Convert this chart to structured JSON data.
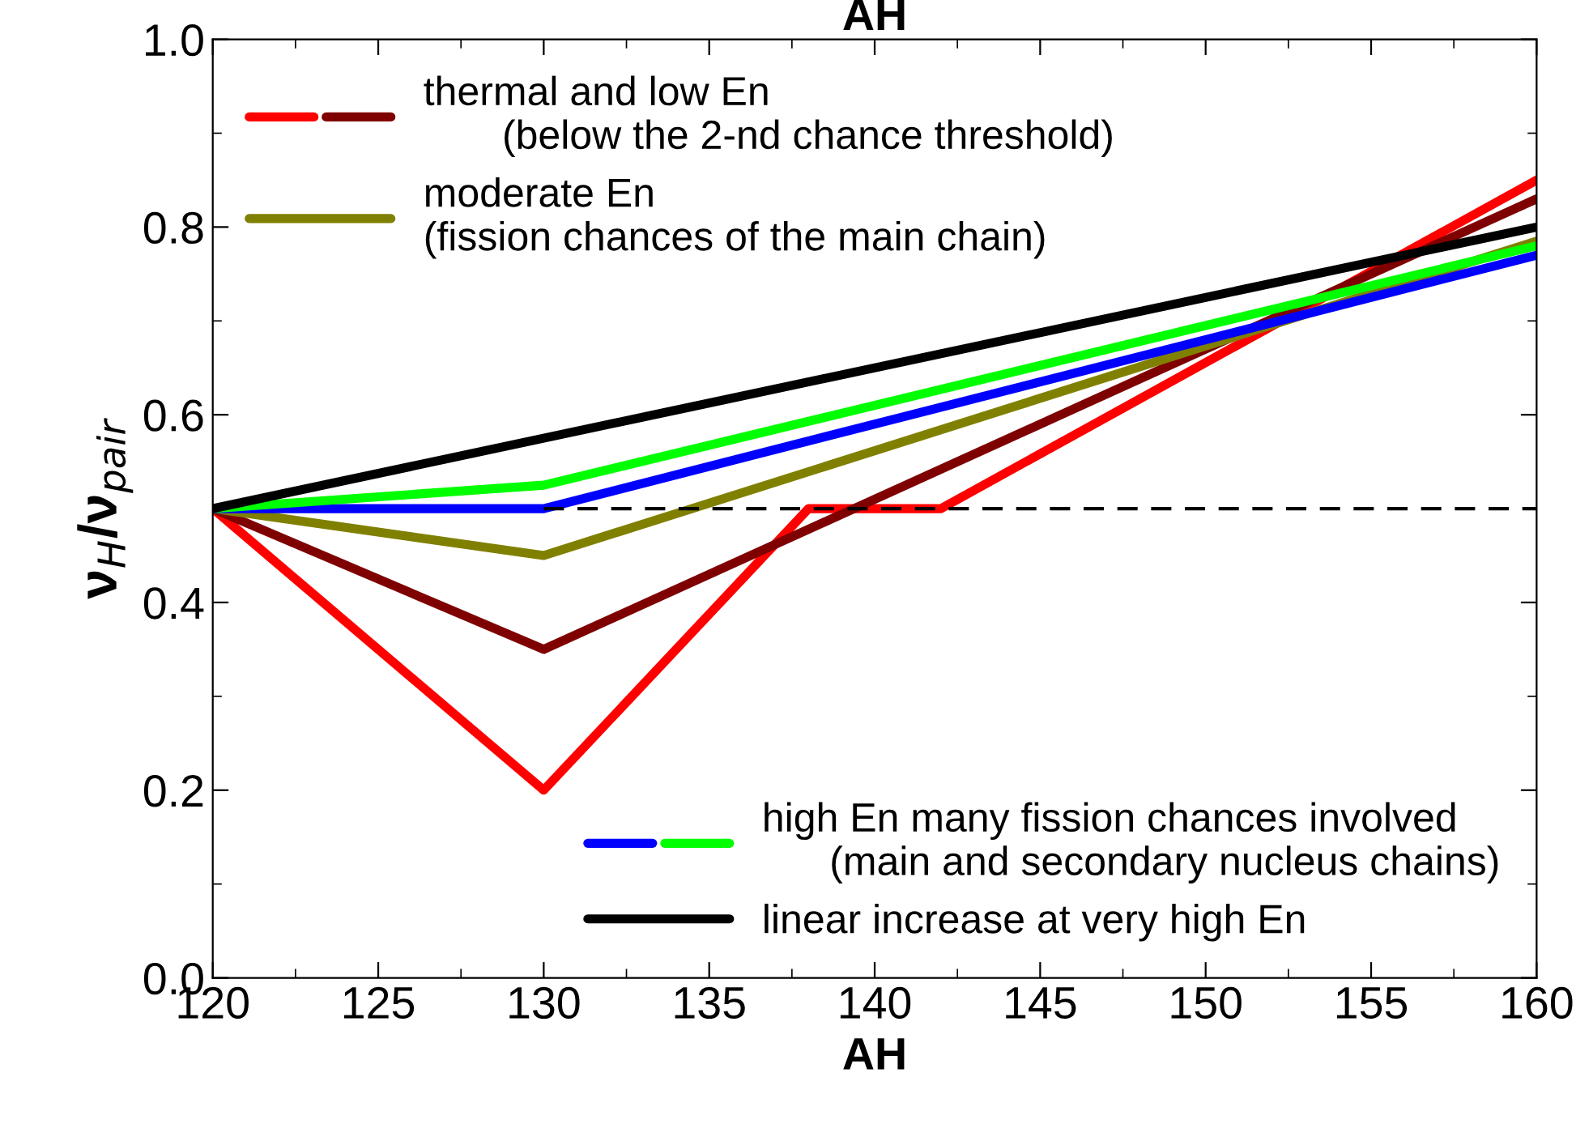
{
  "chart_data": {
    "type": "line",
    "title": "AH",
    "xlabel": "AH",
    "ylabel": "ν$_{H}$/ν$_{pair}$",
    "xlim": [
      120,
      160
    ],
    "xticks": [
      120,
      125,
      130,
      135,
      140,
      145,
      150,
      155,
      160
    ],
    "ylim": [
      0,
      1
    ],
    "yticks": [
      {
        "value": 0,
        "label": "0.0"
      },
      {
        "value": 0.2,
        "label": "0.2"
      },
      {
        "value": 0.4,
        "label": "0.4"
      },
      {
        "value": 0.6,
        "label": "0.6"
      },
      {
        "value": 0.8,
        "label": "0.8"
      },
      {
        "value": 1,
        "label": "1.0"
      }
    ],
    "legend": "top left",
    "grid": false,
    "marker": "none",
    "series": [
      {
        "color": "#ff0000",
        "x": [
          120,
          130,
          138,
          142,
          160
        ],
        "values": [
          0.5,
          0.2,
          0.5,
          0.5,
          0.85
        ]
      },
      {
        "name": "thermal and low En\n       (below the 2-nd chance threshold)",
        "color": "#7f0000",
        "x": [
          120,
          130,
          160
        ],
        "values": [
          0.5,
          0.35,
          0.83
        ]
      },
      {
        "name": "moderate En\n(fission chances of the main chain)",
        "color": "#808000",
        "x": [
          120,
          130,
          160
        ],
        "values": [
          0.5,
          0.45,
          0.785
        ]
      },
      {
        "color": "#0000ff",
        "x": [
          120,
          130,
          160
        ],
        "values": [
          0.5,
          0.5,
          0.77
        ]
      },
      {
        "name": "high En many fission chances involved\n      (main and secondary nucleus chains)",
        "color": "#00ff00",
        "x": [
          120,
          130,
          160
        ],
        "values": [
          0.5,
          0.525,
          0.78
        ]
      },
      {
        "name": "linear increase at very high En",
        "color": "#000000",
        "x": [
          120,
          160
        ],
        "values": [
          0.5,
          0.8
        ]
      },
      {
        "color": "#000000",
        "line_style": "dashed",
        "x": [
          130,
          160
        ],
        "values": [
          0.5,
          0.5
        ]
      }
    ]
  }
}
